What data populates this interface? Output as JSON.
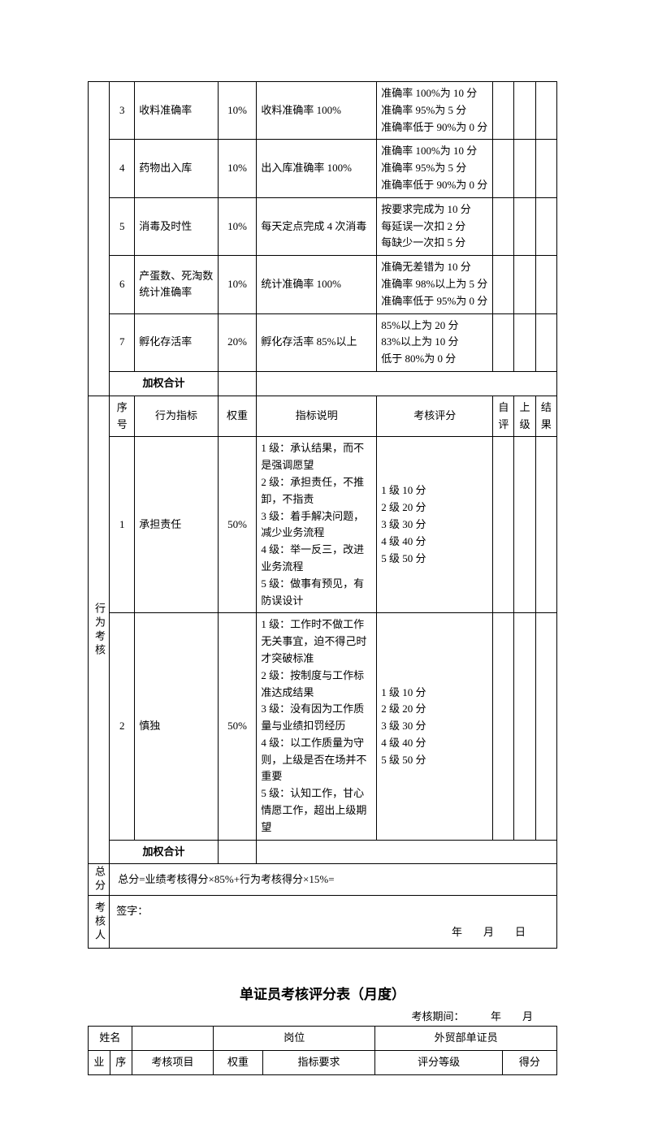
{
  "table1": {
    "perfRows": [
      {
        "idx": "3",
        "item": "收料准确率",
        "weight": "10%",
        "req": "收料准确率 100%",
        "grade": "准确率 100%为 10 分\n准确率 95%为 5 分\n准确率低于 90%为 0 分"
      },
      {
        "idx": "4",
        "item": "药物出入库",
        "weight": "10%",
        "req": "出入库准确率 100%",
        "grade": "准确率 100%为 10 分\n准确率 95%为 5 分\n准确率低于 90%为 0 分"
      },
      {
        "idx": "5",
        "item": "消毒及时性",
        "weight": "10%",
        "req": "每天定点完成 4 次消毒",
        "grade": "按要求完成为 10 分\n每延误一次扣 2 分\n每缺少一次扣 5 分"
      },
      {
        "idx": "6",
        "item": "产蛋数、死淘数统计准确率",
        "weight": "10%",
        "req": "统计准确率 100%",
        "grade": "准确无差错为 10 分\n准确率 98%以上为 5 分\n准确率低于 95%为 0 分"
      },
      {
        "idx": "7",
        "item": "孵化存活率",
        "weight": "20%",
        "req": "孵化存活率 85%以上",
        "grade": "85%以上为 20 分\n83%以上为 10 分\n低于 80%为 0 分"
      }
    ],
    "weightedTotal": "加权合计",
    "behavHeader": {
      "seq": "序号",
      "indicator": "行为指标",
      "weight": "权重",
      "desc": "指标说明",
      "score": "考核评分",
      "self": "自评",
      "sup": "上级",
      "result": "结果"
    },
    "behaviorLabel": "行为考核",
    "behavRows": [
      {
        "idx": "1",
        "item": "承担责任",
        "weight": "50%",
        "desc": "1 级：承认结果，而不是强调愿望\n2 级：承担责任，不推卸，不指责\n3 级：着手解决问题，减少业务流程\n4 级：举一反三，改进业务流程\n5 级：做事有预见，有防误设计",
        "score": "1 级 10 分\n2 级 20 分\n3 级 30 分\n4 级 40 分\n5 级 50 分"
      },
      {
        "idx": "2",
        "item": "慎独",
        "weight": "50%",
        "desc": "1 级：工作时不做工作无关事宜，迫不得己时才突破标准\n2 级：按制度与工作标准达成结果\n3 级：没有因为工作质量与业绩扣罚经历\n4 级：以工作质量为守则，上级是否在场并不重要\n5 级：认知工作，甘心情愿工作，超出上级期望",
        "score": "1 级 10 分\n2 级 20 分\n3 级 30 分\n4 级 40 分\n5 级 50 分"
      }
    ],
    "totalLabel": "总分",
    "formula": "总分=业绩考核得分×85%+行为考核得分×15%=",
    "signerLabel": "考核人",
    "signLabel": "签字：",
    "dateLine": "年　　月　　日"
  },
  "table2": {
    "title": "单证员考核评分表（月度）",
    "periodLabel": "考核期间：",
    "periodSuffix": "年　　月",
    "nameLabel": "姓名",
    "postLabel": "岗位",
    "postValue": "外贸部单证员",
    "perfLabel": "业",
    "header": {
      "seq": "序",
      "item": "考核项目",
      "weight": "权重",
      "req": "指标要求",
      "grade": "评分等级",
      "score": "得分"
    }
  },
  "colWidths": {
    "t1": [
      22,
      26,
      86,
      40,
      124,
      120,
      22,
      22,
      22
    ],
    "t2": [
      24,
      24,
      90,
      54,
      124,
      140,
      60
    ]
  }
}
